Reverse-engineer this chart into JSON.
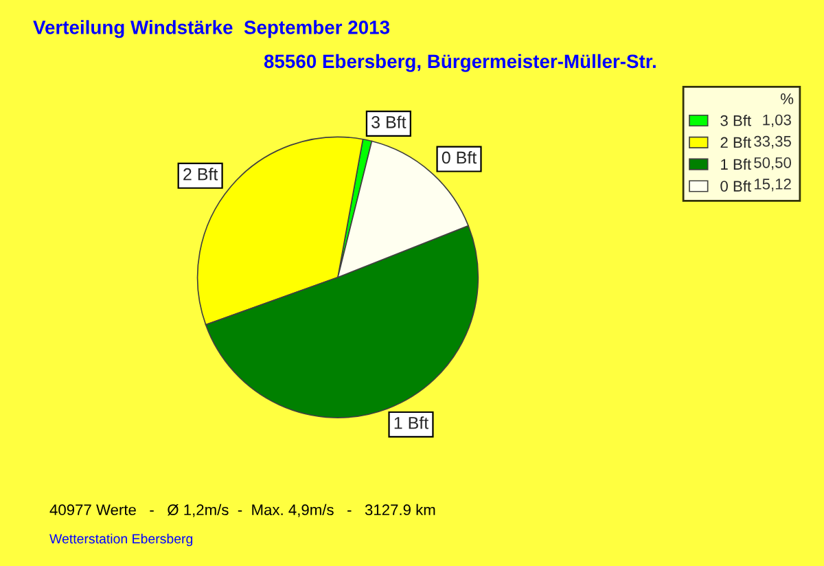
{
  "chart_data": {
    "type": "pie",
    "title": "Verteilung Windstärke  September 2013",
    "subtitle": "85560 Ebersberg, Bürgermeister-Müller-Str.",
    "categories": [
      "3 Bft",
      "2 Bft",
      "1 Bft",
      "0 Bft"
    ],
    "values": [
      1.03,
      33.35,
      50.5,
      15.12
    ],
    "value_labels": [
      "1,03",
      "33,35",
      "50,50",
      "15,12"
    ],
    "colors": [
      "#00ff00",
      "#ffff00",
      "#008000",
      "#fffff0"
    ],
    "legend_title": "%",
    "legend": "top right",
    "annotations": [
      "40977 Werte   -   Ø 1,2m/s  -  Max. 4,9m/s   -   3127.9 km",
      "Wetterstation Ebersberg"
    ]
  }
}
